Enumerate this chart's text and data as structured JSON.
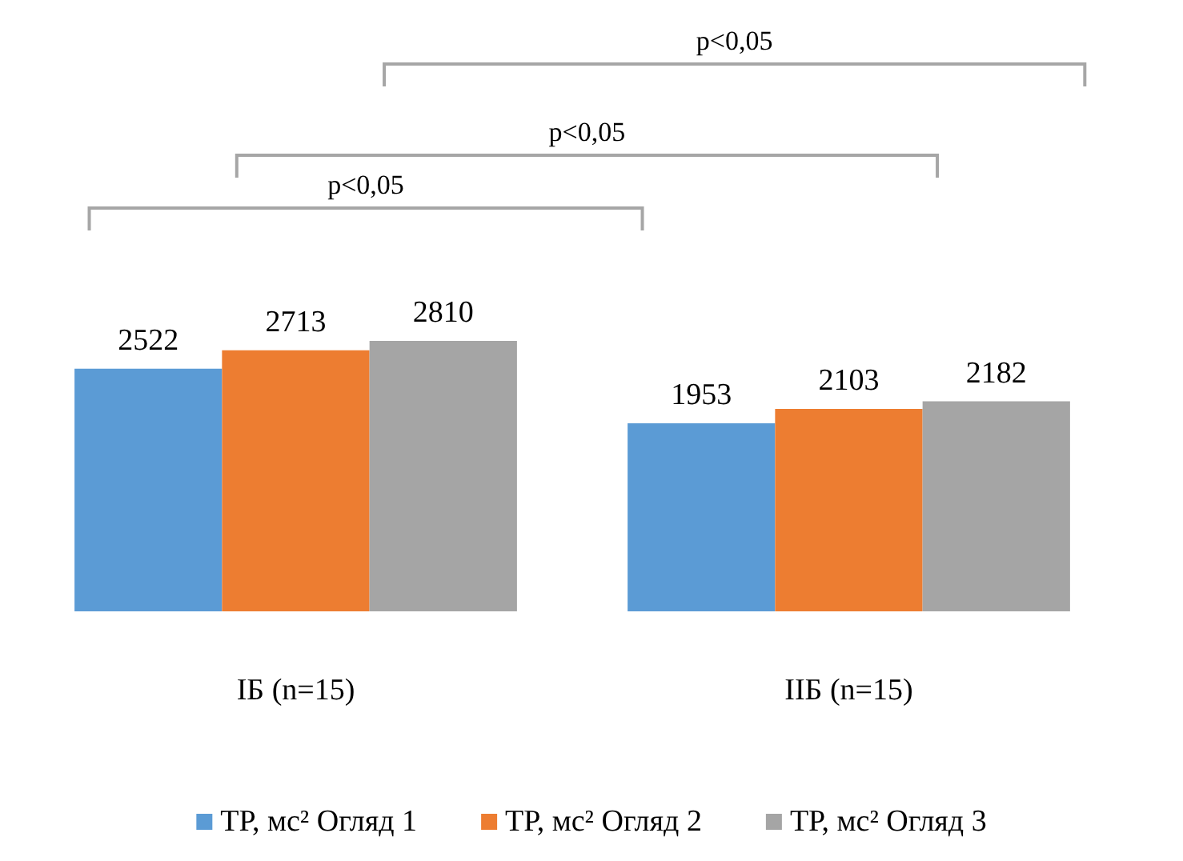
{
  "chart_data": {
    "type": "bar",
    "categories": [
      "ІБ (n=15)",
      "ІІБ (n=15)"
    ],
    "series": [
      {
        "name": "ТР, мс² Огляд 1",
        "color": "#5b9bd5",
        "values": [
          2522,
          1953
        ]
      },
      {
        "name": "ТР, мс² Огляд 2",
        "color": "#ed7d31",
        "values": [
          2713,
          2103
        ]
      },
      {
        "name": "ТР, мс² Огляд 3",
        "color": "#a5a5a5",
        "values": [
          2810,
          2182
        ]
      }
    ],
    "data_labels": true,
    "legend": "bottom",
    "annotations": [
      "p<0,05",
      "p<0,05",
      "p<0,05"
    ]
  }
}
